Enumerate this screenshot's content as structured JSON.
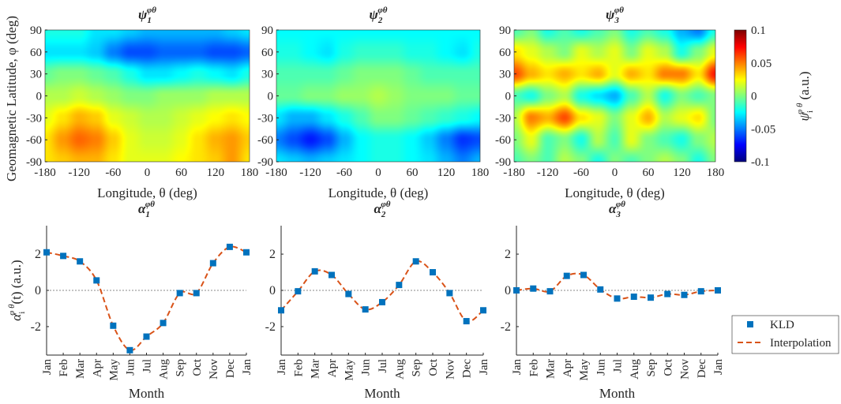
{
  "chart_data": [
    {
      "type": "heatmap",
      "title": "ψ1φθ",
      "title_base": "ψ",
      "title_sub": "1",
      "title_sup": "φθ",
      "xlabel": "Longitude, θ (deg)",
      "ylabel": "Geomagnetic Latitude, φ (deg)",
      "x": [
        -180,
        -150,
        -120,
        -90,
        -60,
        -30,
        0,
        30,
        60,
        90,
        120,
        150,
        180
      ],
      "y": [
        90,
        60,
        30,
        0,
        -30,
        -60,
        -90
      ],
      "xticks": [
        "-180",
        "-120",
        "-60",
        "0",
        "60",
        "120",
        "180"
      ],
      "yticks": [
        "90",
        "60",
        "30",
        "0",
        "-30",
        "-60",
        "-90"
      ],
      "z": [
        [
          -0.02,
          -0.02,
          -0.02,
          -0.03,
          -0.03,
          -0.035,
          -0.04,
          -0.04,
          -0.04,
          -0.04,
          -0.04,
          -0.035,
          -0.03
        ],
        [
          -0.03,
          -0.03,
          -0.03,
          -0.035,
          -0.05,
          -0.06,
          -0.06,
          -0.055,
          -0.055,
          -0.055,
          -0.06,
          -0.06,
          -0.055
        ],
        [
          -0.005,
          0,
          0,
          -0.005,
          -0.01,
          -0.02,
          -0.03,
          -0.03,
          -0.025,
          -0.02,
          -0.025,
          -0.03,
          -0.02
        ],
        [
          0.01,
          0.01,
          0.015,
          0.01,
          0.005,
          0,
          0,
          0.005,
          0.005,
          0.005,
          0.01,
          0.01,
          0.01
        ],
        [
          0.02,
          0.03,
          0.04,
          0.035,
          0.02,
          0.015,
          0.01,
          0.01,
          0.015,
          0.02,
          0.025,
          0.03,
          0.025
        ],
        [
          0.03,
          0.045,
          0.055,
          0.05,
          0.035,
          0.02,
          0.015,
          0.015,
          0.02,
          0.03,
          0.04,
          0.045,
          0.035
        ],
        [
          0.03,
          0.035,
          0.04,
          0.04,
          0.03,
          0.02,
          0.02,
          0.02,
          0.025,
          0.03,
          0.035,
          0.045,
          0.03
        ]
      ],
      "clim": [
        -0.1,
        0.1
      ]
    },
    {
      "type": "heatmap",
      "title": "ψ2φθ",
      "title_base": "ψ",
      "title_sub": "2",
      "title_sup": "φθ",
      "xlabel": "Longitude, θ (deg)",
      "x": [
        -180,
        -150,
        -120,
        -90,
        -60,
        -30,
        0,
        30,
        60,
        90,
        120,
        150,
        180
      ],
      "y": [
        90,
        60,
        30,
        0,
        -30,
        -60,
        -90
      ],
      "xticks": [
        "-180",
        "-120",
        "-60",
        "0",
        "60",
        "120",
        "180"
      ],
      "yticks": [
        "90",
        "60",
        "30",
        "0",
        "-30",
        "-60",
        "-90"
      ],
      "z": [
        [
          -0.025,
          -0.025,
          -0.025,
          -0.025,
          -0.025,
          -0.025,
          -0.025,
          -0.025,
          -0.025,
          -0.025,
          -0.025,
          -0.025,
          -0.025
        ],
        [
          -0.02,
          -0.02,
          -0.025,
          -0.03,
          -0.02,
          -0.015,
          -0.015,
          -0.015,
          -0.02,
          -0.02,
          -0.025,
          -0.03,
          -0.02
        ],
        [
          -0.01,
          -0.01,
          -0.01,
          -0.01,
          -0.005,
          0,
          0,
          0,
          -0.005,
          -0.01,
          -0.01,
          -0.01,
          -0.01
        ],
        [
          -0.005,
          -0.005,
          0,
          0,
          0.005,
          0.005,
          0.01,
          0.005,
          0,
          0,
          0,
          -0.005,
          -0.005
        ],
        [
          -0.03,
          -0.04,
          -0.04,
          -0.03,
          -0.02,
          -0.01,
          0,
          0,
          -0.005,
          -0.01,
          -0.015,
          -0.02,
          -0.025
        ],
        [
          -0.05,
          -0.06,
          -0.07,
          -0.06,
          -0.04,
          -0.025,
          -0.02,
          -0.02,
          -0.025,
          -0.035,
          -0.05,
          -0.065,
          -0.06
        ],
        [
          -0.03,
          -0.035,
          -0.04,
          -0.035,
          -0.03,
          -0.025,
          -0.02,
          -0.02,
          -0.025,
          -0.03,
          -0.04,
          -0.05,
          -0.04
        ]
      ],
      "clim": [
        -0.1,
        0.1
      ]
    },
    {
      "type": "heatmap",
      "title": "ψ3φθ",
      "title_base": "ψ",
      "title_sub": "3",
      "title_sup": "φθ",
      "xlabel": "Longitude, θ (deg)",
      "x": [
        -180,
        -150,
        -120,
        -90,
        -60,
        -30,
        0,
        30,
        60,
        90,
        120,
        150,
        180
      ],
      "y": [
        90,
        60,
        30,
        0,
        -30,
        -60,
        -90
      ],
      "xticks": [
        "-180",
        "-120",
        "-60",
        "0",
        "60",
        "120",
        "180"
      ],
      "yticks": [
        "90",
        "60",
        "30",
        "0",
        "-30",
        "-60",
        "-90"
      ],
      "z": [
        [
          -0.01,
          0,
          -0.02,
          -0.01,
          -0.02,
          -0.01,
          0,
          -0.02,
          -0.01,
          -0.02,
          -0.04,
          -0.05,
          -0.02
        ],
        [
          0.03,
          0.02,
          0.01,
          0,
          0.02,
          0.01,
          0.02,
          0,
          0.02,
          0.01,
          -0.02,
          0,
          0.02
        ],
        [
          0.06,
          0.04,
          0.03,
          0.04,
          0.03,
          0.04,
          0.02,
          0.04,
          0.03,
          0.05,
          0.05,
          0.03,
          0.07
        ],
        [
          -0.01,
          -0.02,
          0,
          0.01,
          -0.02,
          -0.03,
          -0.04,
          -0.01,
          0.01,
          -0.02,
          0,
          -0.01,
          0
        ],
        [
          0.01,
          0.05,
          0.04,
          0.06,
          0.03,
          0.02,
          0,
          0.02,
          0.04,
          0.01,
          0.02,
          0.03,
          0
        ],
        [
          0,
          0.02,
          -0.01,
          0,
          -0.02,
          0.01,
          -0.01,
          0.02,
          0,
          -0.01,
          -0.02,
          0,
          0.01
        ],
        [
          -0.01,
          0,
          -0.01,
          0.01,
          0,
          -0.02,
          0,
          -0.01,
          0,
          0.01,
          0,
          -0.02,
          0
        ]
      ],
      "clim": [
        -0.1,
        0.1
      ]
    },
    {
      "type": "line",
      "title": "α1φθ",
      "title_base": "α",
      "title_sub": "1",
      "title_sup": "φθ",
      "xlabel": "Month",
      "ylabel": "αiφθ(t) (a.u.)",
      "categories": [
        "Jan",
        "Feb",
        "Mar",
        "Apr",
        "May",
        "Jun",
        "Jul",
        "Aug",
        "Sep",
        "Oct",
        "Nov",
        "Dec",
        "Jan"
      ],
      "values": [
        2.1,
        1.9,
        1.6,
        0.55,
        -1.95,
        -3.3,
        -2.55,
        -1.8,
        -0.15,
        -0.15,
        1.5,
        2.4,
        2.1
      ],
      "yticks": [
        "2",
        "0",
        "-2"
      ],
      "ylim": [
        -3.57,
        3.57
      ]
    },
    {
      "type": "line",
      "title": "α2φθ",
      "title_base": "α",
      "title_sub": "2",
      "title_sup": "φθ",
      "xlabel": "Month",
      "categories": [
        "Jan",
        "Feb",
        "Mar",
        "Apr",
        "May",
        "Jun",
        "Jul",
        "Aug",
        "Sep",
        "Oct",
        "Nov",
        "Dec",
        "Jan"
      ],
      "values": [
        -1.1,
        -0.05,
        1.05,
        0.85,
        -0.2,
        -1.05,
        -0.65,
        0.3,
        1.6,
        1.0,
        -0.15,
        -1.7,
        -1.1
      ],
      "yticks": [
        "2",
        "0",
        "-2"
      ],
      "ylim": [
        -3.57,
        3.57
      ]
    },
    {
      "type": "line",
      "title": "α3φθ",
      "title_base": "α",
      "title_sub": "3",
      "title_sup": "φθ",
      "xlabel": "Month",
      "categories": [
        "Jan",
        "Feb",
        "Mar",
        "Apr",
        "May",
        "Jun",
        "Jul",
        "Aug",
        "Sep",
        "Oct",
        "Nov",
        "Dec",
        "Jan"
      ],
      "values": [
        0,
        0.1,
        -0.05,
        0.8,
        0.85,
        0.05,
        -0.45,
        -0.35,
        -0.4,
        -0.2,
        -0.25,
        -0.05,
        0
      ],
      "yticks": [
        "2",
        "0",
        "-2"
      ],
      "ylim": [
        -3.57,
        3.57
      ]
    }
  ],
  "colorbar": {
    "ticks": [
      "0.1",
      "0.05",
      "0",
      "-0.05",
      "-0.1"
    ],
    "label_base": "ψ",
    "label_sub": "i",
    "label_sup": "φ θ",
    "label_unit": " (a.u.)",
    "label": "ψiφθ (a.u.)"
  },
  "legend": {
    "entries": [
      {
        "label": "KLD",
        "color": "#0072BD"
      },
      {
        "label": "Interpolation",
        "color": "#D95319"
      }
    ]
  }
}
